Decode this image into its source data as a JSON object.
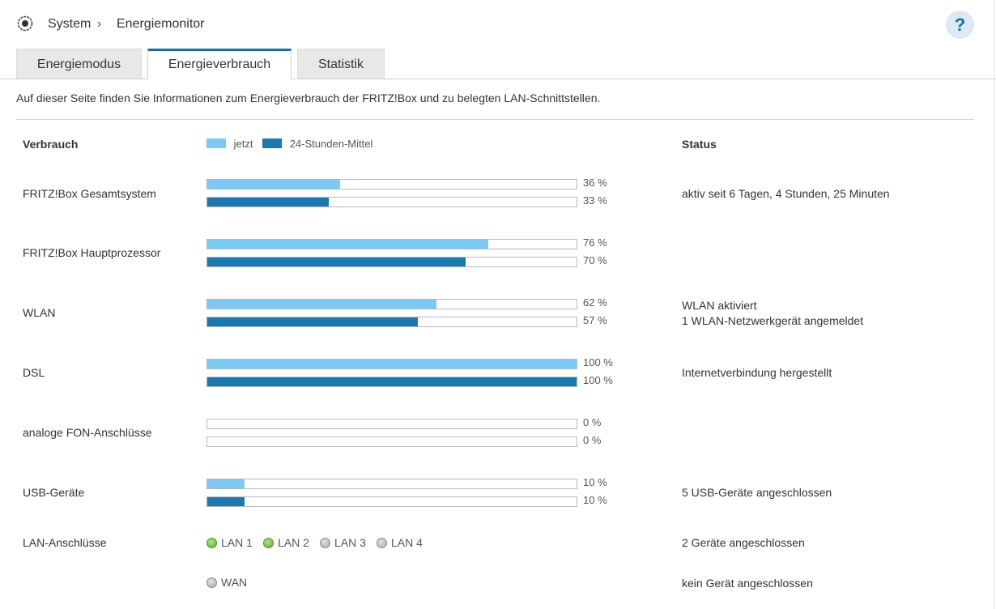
{
  "breadcrumb": {
    "root": "System",
    "separator": "›",
    "current": "Energiemonitor"
  },
  "help_label": "?",
  "tabs": [
    {
      "label": "Energiemodus",
      "active": false
    },
    {
      "label": "Energieverbrauch",
      "active": true
    },
    {
      "label": "Statistik",
      "active": false
    }
  ],
  "intro": "Auf dieser Seite finden Sie Informationen zum Energieverbrauch der FRITZ!Box und zu belegten LAN-Schnittstellen.",
  "table": {
    "col_consumption": "Verbrauch",
    "col_status": "Status",
    "legend": {
      "now": "jetzt",
      "avg": "24-Stunden-Mittel"
    }
  },
  "colors": {
    "now": "#7acaf5",
    "avg": "#1a79b3",
    "accent": "#1c6bb0"
  },
  "rows": [
    {
      "label": "FRITZ!Box Gesamtsystem",
      "now": 36,
      "avg": 33,
      "now_text": "36 %",
      "avg_text": "33 %",
      "status": [
        "aktiv seit 6 Tagen, 4 Stunden, 25 Minuten"
      ]
    },
    {
      "label": "FRITZ!Box Hauptprozessor",
      "now": 76,
      "avg": 70,
      "now_text": "76 %",
      "avg_text": "70 %",
      "status": []
    },
    {
      "label": "WLAN",
      "now": 62,
      "avg": 57,
      "now_text": "62 %",
      "avg_text": "57 %",
      "status": [
        "WLAN aktiviert",
        "1 WLAN-Netzwerkgerät angemeldet"
      ]
    },
    {
      "label": "DSL",
      "now": 100,
      "avg": 100,
      "now_text": "100 %",
      "avg_text": "100 %",
      "status": [
        "Internetverbindung hergestellt"
      ]
    },
    {
      "label": "analoge FON-Anschlüsse",
      "now": 0,
      "avg": 0,
      "now_text": "0 %",
      "avg_text": "0 %",
      "status": []
    },
    {
      "label": "USB-Geräte",
      "now": 10,
      "avg": 10,
      "now_text": "10 %",
      "avg_text": "10 %",
      "status": [
        "5 USB-Geräte angeschlossen"
      ]
    }
  ],
  "lan": {
    "label": "LAN-Anschlüsse",
    "ports": [
      {
        "label": "LAN 1",
        "active": true
      },
      {
        "label": "LAN 2",
        "active": true
      },
      {
        "label": "LAN 3",
        "active": false
      },
      {
        "label": "LAN 4",
        "active": false
      }
    ],
    "status": "2 Geräte angeschlossen"
  },
  "wan": {
    "label": "WAN",
    "active": false,
    "status": "kein Gerät angeschlossen"
  }
}
